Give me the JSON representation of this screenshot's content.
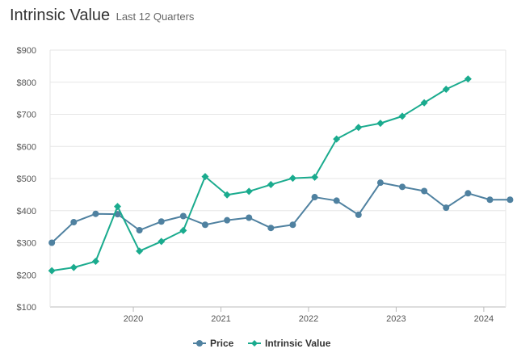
{
  "header": {
    "title": "Intrinsic Value",
    "subtitle": "Last 12 Quarters"
  },
  "chart_data": {
    "type": "line",
    "title": "Intrinsic Value",
    "subtitle": "Last 12 Quarters",
    "xlabel": "",
    "ylabel": "",
    "ylim": [
      100,
      900
    ],
    "y_ticks": [
      100,
      200,
      300,
      400,
      500,
      600,
      700,
      800,
      900
    ],
    "y_tick_labels": [
      "$100",
      "$200",
      "$300",
      "$400",
      "$500",
      "$600",
      "$700",
      "$800",
      "$900"
    ],
    "xlim": [
      2019.05,
      2024.25
    ],
    "x_ticks": [
      2020,
      2021,
      2022,
      2023,
      2024
    ],
    "x_tick_labels": [
      "2020",
      "2021",
      "2022",
      "2023",
      "2024"
    ],
    "grid": true,
    "legend_position": "bottom-center",
    "series": [
      {
        "name": "Price",
        "color": "#4f81a0",
        "marker": "circle",
        "x": [
          2019.07,
          2019.32,
          2019.57,
          2019.82,
          2020.07,
          2020.32,
          2020.57,
          2020.82,
          2021.07,
          2021.32,
          2021.57,
          2021.82,
          2022.07,
          2022.32,
          2022.57,
          2022.82,
          2023.07,
          2023.32,
          2023.57,
          2023.82,
          2024.07,
          2024.3
        ],
        "values": [
          300,
          364,
          390,
          389,
          339,
          366,
          383,
          356,
          370,
          378,
          346,
          356,
          442,
          431,
          387,
          487,
          474,
          461,
          409,
          454,
          434,
          434
        ]
      },
      {
        "name": "Intrinsic Value",
        "color": "#1aab8e",
        "marker": "diamond",
        "x": [
          2019.07,
          2019.32,
          2019.57,
          2019.82,
          2020.07,
          2020.32,
          2020.57,
          2020.82,
          2021.07,
          2021.32,
          2021.57,
          2021.82,
          2022.07,
          2022.32,
          2022.57,
          2022.82,
          2023.07,
          2023.32,
          2023.57,
          2023.82
        ],
        "values": [
          213,
          223,
          242,
          413,
          274,
          304,
          338,
          506,
          449,
          460,
          481,
          501,
          504,
          623,
          659,
          672,
          694,
          736,
          778,
          810
        ]
      }
    ]
  }
}
